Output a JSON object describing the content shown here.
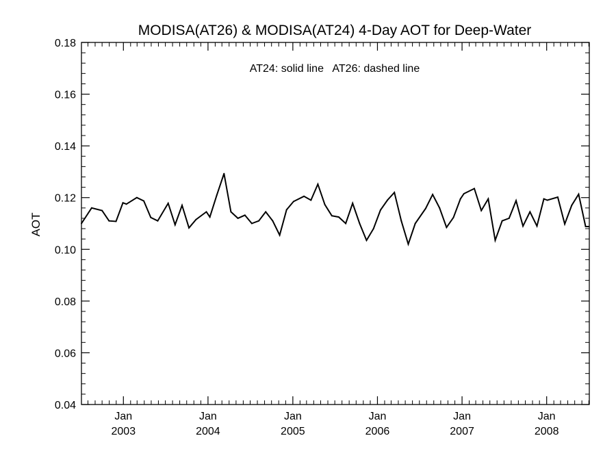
{
  "chart_data": {
    "type": "line",
    "title": "MODISA(AT26) & MODISA(AT24) 4-Day AOT for Deep-Water",
    "annotation": "AT24: solid line   AT26: dashed line",
    "xlabel": "",
    "ylabel": "AOT",
    "ylim": [
      0.04,
      0.18
    ],
    "y_ticks": [
      "0.04",
      "0.06",
      "0.08",
      "0.10",
      "0.12",
      "0.14",
      "0.16",
      "0.18"
    ],
    "x_ticks": [
      {
        "label": "Jan",
        "year": "2003"
      },
      {
        "label": "Jan",
        "year": "2004"
      },
      {
        "label": "Jan",
        "year": "2005"
      },
      {
        "label": "Jan",
        "year": "2006"
      },
      {
        "label": "Jan",
        "year": "2007"
      },
      {
        "label": "Jan",
        "year": "2008"
      }
    ],
    "xlim": [
      "2002-07-04",
      "2008-07-03"
    ],
    "legend": "none",
    "grid": false,
    "series": [
      {
        "line_style": "solid",
        "color": "#000000",
        "x": [
          "2002-07-04",
          "2002-08-17",
          "2002-10-01",
          "2002-10-31",
          "2002-11-30",
          "2002-12-30",
          "2003-01-14",
          "2003-02-28",
          "2003-03-30",
          "2003-04-29",
          "2003-05-29",
          "2003-07-13",
          "2003-08-12",
          "2003-09-11",
          "2003-10-11",
          "2003-11-10",
          "2003-12-25",
          "2004-01-09",
          "2004-02-08",
          "2004-03-10",
          "2004-04-09",
          "2004-05-09",
          "2004-06-08",
          "2004-07-08",
          "2004-08-07",
          "2004-09-06",
          "2004-10-06",
          "2004-11-05",
          "2004-12-05",
          "2005-01-04",
          "2005-02-18",
          "2005-03-20",
          "2005-04-19",
          "2005-05-19",
          "2005-06-18",
          "2005-07-18",
          "2005-08-17",
          "2005-09-16",
          "2005-10-16",
          "2005-11-15",
          "2005-12-15",
          "2006-01-14",
          "2006-02-13",
          "2006-03-15",
          "2006-04-14",
          "2006-05-14",
          "2006-06-13",
          "2006-07-28",
          "2006-08-27",
          "2006-09-26",
          "2006-10-26",
          "2006-11-25",
          "2006-12-25",
          "2007-01-09",
          "2007-02-23",
          "2007-03-25",
          "2007-04-24",
          "2007-05-24",
          "2007-06-23",
          "2007-07-23",
          "2007-08-22",
          "2007-09-21",
          "2007-10-21",
          "2007-11-20",
          "2007-12-20",
          "2008-01-04",
          "2008-02-18",
          "2008-03-19",
          "2008-04-18",
          "2008-05-18",
          "2008-06-17",
          "2008-07-02"
        ],
        "values": [
          0.11,
          0.116,
          0.115,
          0.111,
          0.1108,
          0.118,
          0.1175,
          0.12,
          0.1187,
          0.1123,
          0.111,
          0.1178,
          0.1095,
          0.117,
          0.1083,
          0.1115,
          0.1145,
          0.1125,
          0.121,
          0.1293,
          0.1145,
          0.112,
          0.1132,
          0.11,
          0.111,
          0.1145,
          0.111,
          0.1055,
          0.1153,
          0.1185,
          0.1205,
          0.119,
          0.1252,
          0.1173,
          0.113,
          0.1125,
          0.11,
          0.1178,
          0.11,
          0.1035,
          0.108,
          0.1152,
          0.119,
          0.122,
          0.111,
          0.102,
          0.11,
          0.1158,
          0.1212,
          0.116,
          0.1085,
          0.1123,
          0.1195,
          0.1215,
          0.1235,
          0.115,
          0.1195,
          0.1035,
          0.111,
          0.112,
          0.1188,
          0.109,
          0.1145,
          0.109,
          0.1195,
          0.119,
          0.1202,
          0.1098,
          0.117,
          0.1213,
          0.1088,
          0.1088
        ]
      }
    ]
  }
}
